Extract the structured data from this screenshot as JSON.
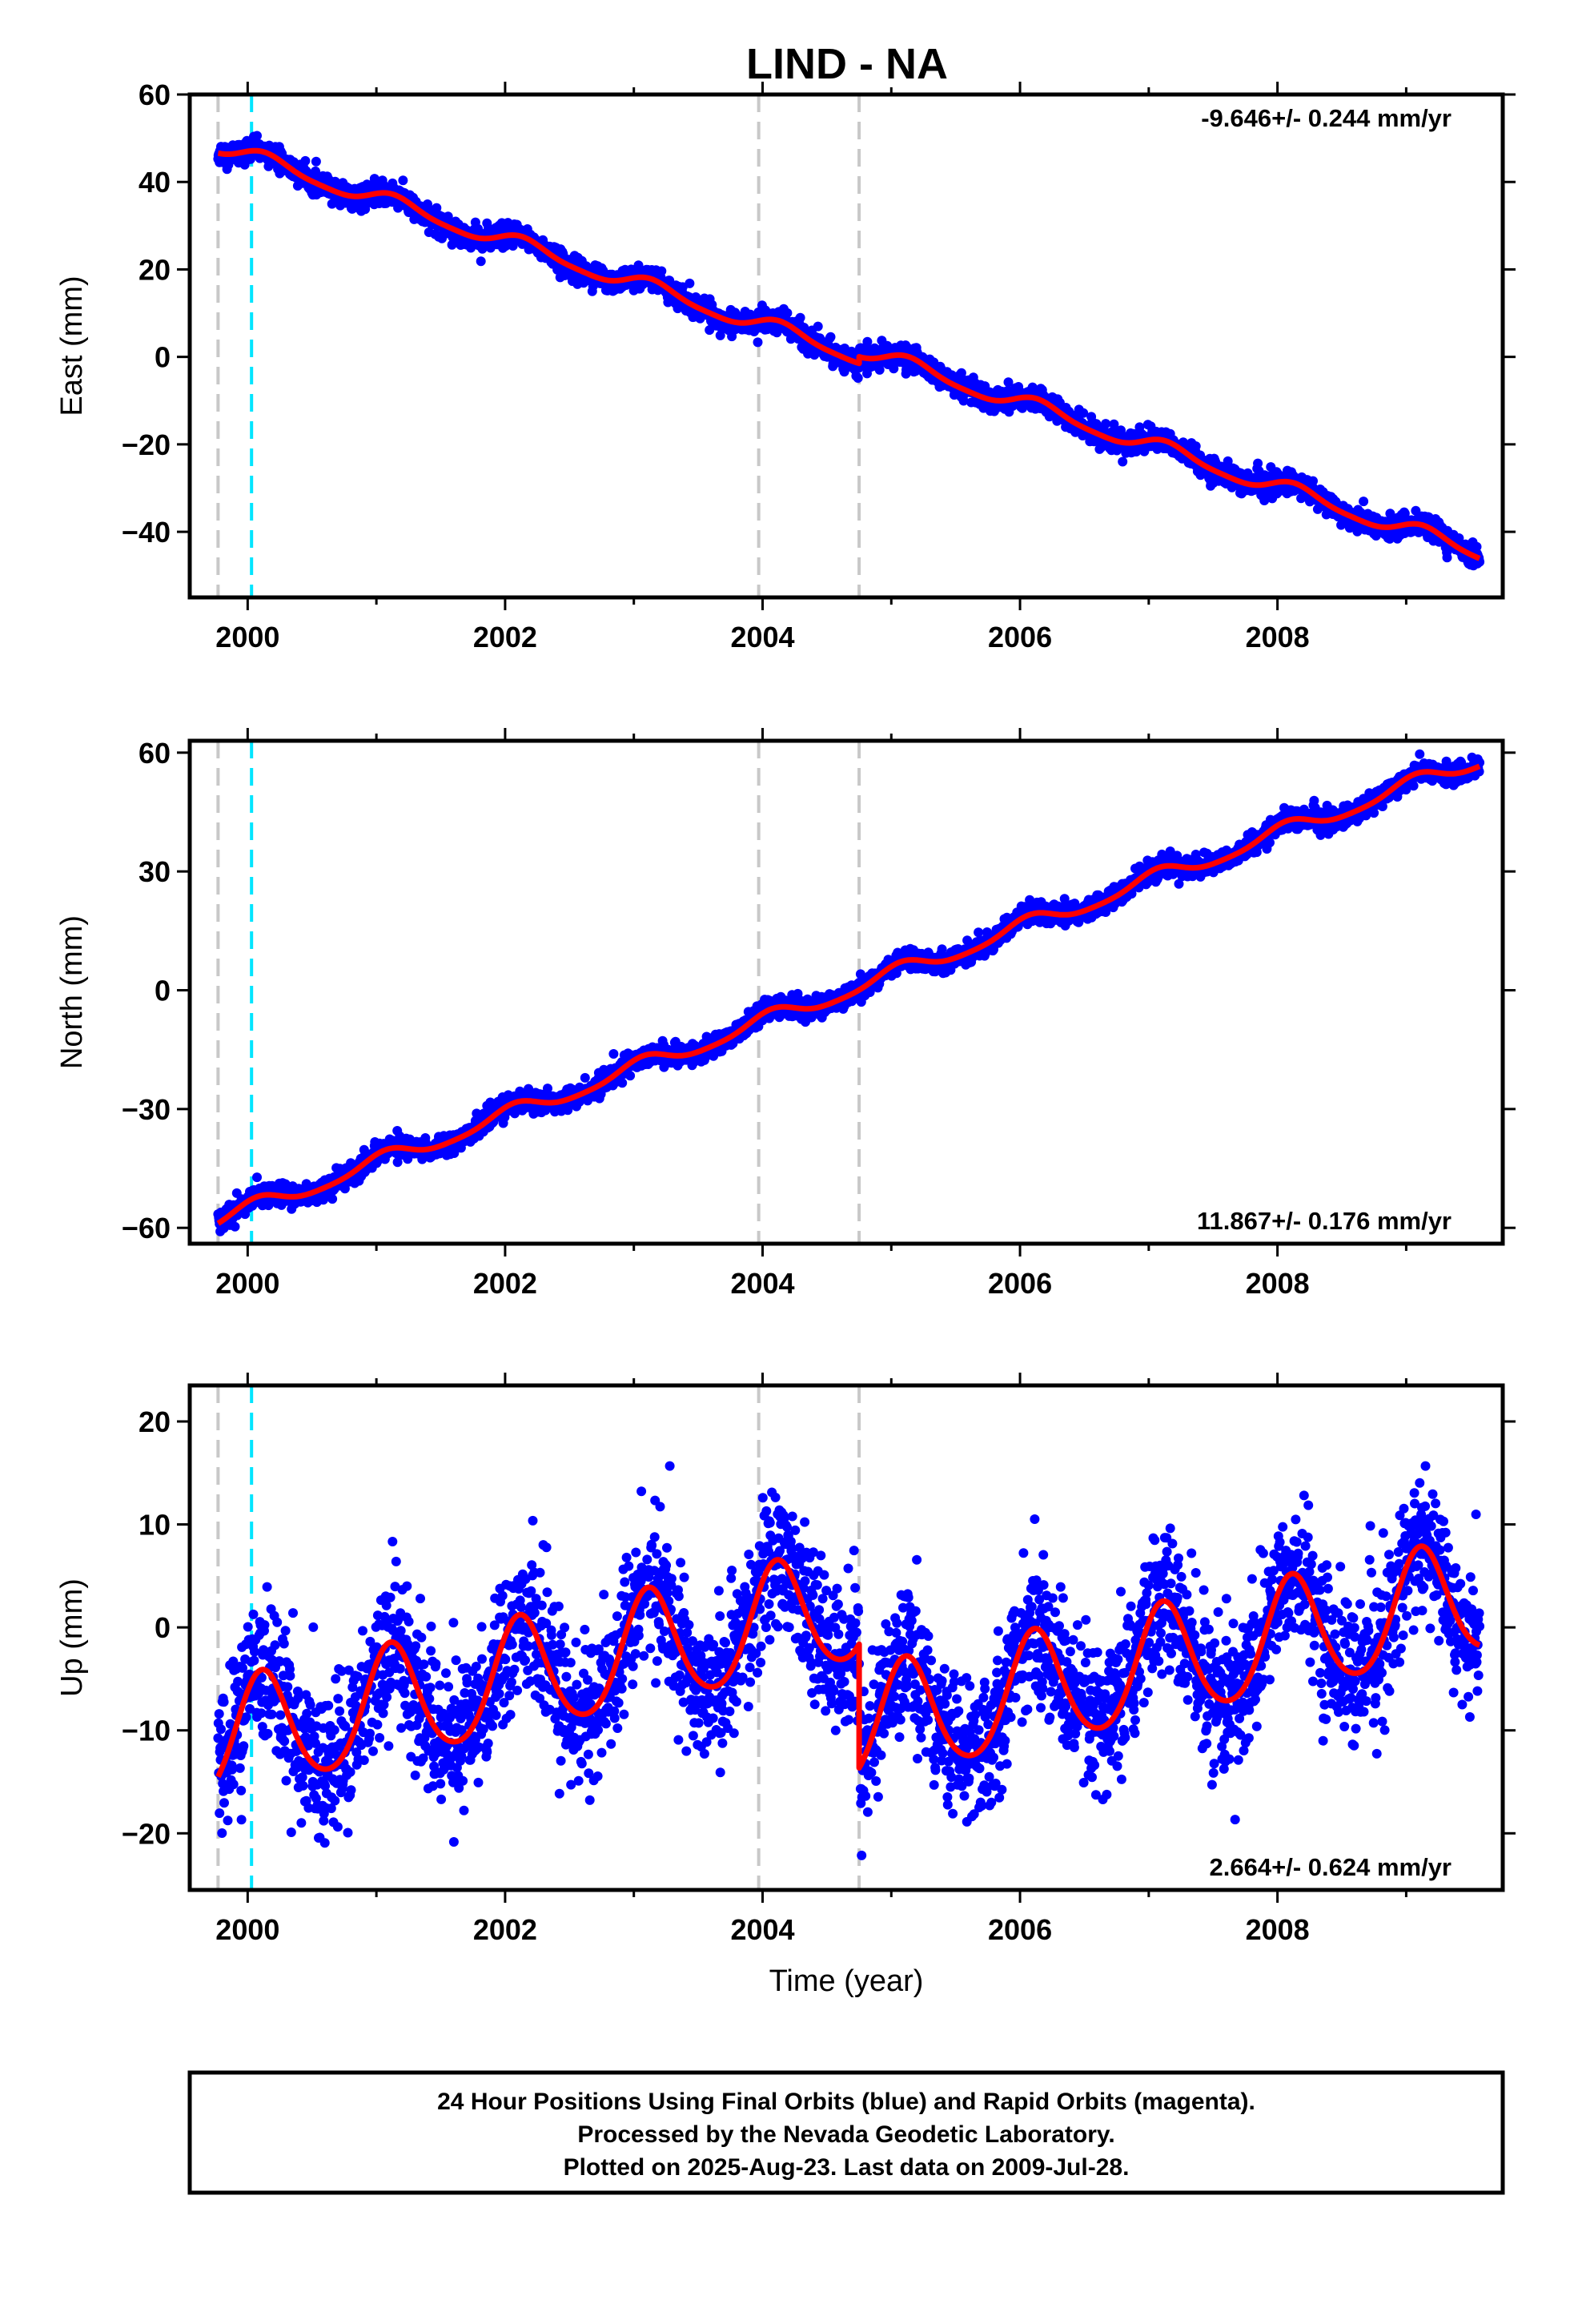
{
  "title": "LIND - NA",
  "x_axis": {
    "label": "Time (year)",
    "range": [
      1999.55,
      2009.75
    ],
    "tick_labels": [
      "2000",
      "2002",
      "2004",
      "2006",
      "2008"
    ],
    "major_ticks": [
      2000,
      2002,
      2004,
      2006,
      2008
    ],
    "minor_ticks": [
      2001,
      2003,
      2005,
      2007,
      2009
    ]
  },
  "event_lines": {
    "gray": [
      1999.77,
      2003.97,
      2004.75
    ],
    "cyan": [
      2000.03
    ]
  },
  "caption": {
    "lines": [
      "24 Hour Positions Using Final Orbits (blue) and Rapid Orbits (magenta).",
      "Processed by the Nevada Geodetic Laboratory.",
      "Plotted on 2025-Aug-23. Last data on 2009-Jul-28."
    ]
  },
  "colors": {
    "final_orbits": "#0000ff",
    "fit_curve": "#ff0000",
    "gray_events": "#c8c8c8",
    "cyan_events": "#00e5ff",
    "frame": "#000000"
  },
  "chart_data": [
    {
      "type": "scatter",
      "component": "east",
      "ylabel": "East (mm)",
      "ylim": [
        -55,
        60
      ],
      "y_ticks": [
        -40,
        -20,
        0,
        20,
        40,
        60
      ],
      "y_tick_labels": [
        "−40",
        "−20",
        "0",
        "20",
        "40",
        "60"
      ],
      "rate_label": "-9.646+/- 0.244 mm/yr",
      "rate_position": "top-right",
      "fit": {
        "rate": -9.646,
        "offset": 2.5,
        "ref_year": 2004.5,
        "annual_amp": 1.8,
        "annual_phase": 0.6,
        "semiannual_amp": 0.4,
        "semiannual_phase": 0.2,
        "steps": [
          {
            "year": 2004.75,
            "size": 1.5
          }
        ]
      },
      "scatter_sigma": 1.3,
      "points_count": 3500,
      "time_range": [
        1999.77,
        2009.57
      ]
    },
    {
      "type": "scatter",
      "component": "north",
      "ylabel": "North (mm)",
      "ylim": [
        -64,
        63
      ],
      "y_ticks": [
        -60,
        -30,
        0,
        30,
        60
      ],
      "y_tick_labels": [
        "−60",
        "−30",
        "0",
        "30",
        "60"
      ],
      "rate_label": "11.867+/- 0.176 mm/yr",
      "rate_position": "bottom-right",
      "fit": {
        "rate": 11.867,
        "offset": -2.0,
        "ref_year": 2004.5,
        "annual_amp": 2.0,
        "annual_phase": 1.2,
        "semiannual_amp": 0.4,
        "semiannual_phase": 0.5,
        "steps": []
      },
      "scatter_sigma": 1.3,
      "points_count": 3500,
      "time_range": [
        1999.77,
        2009.57
      ]
    },
    {
      "type": "scatter",
      "component": "up",
      "ylabel": "Up (mm)",
      "ylim": [
        -25.5,
        23.5
      ],
      "y_ticks": [
        -20,
        -10,
        0,
        10,
        20
      ],
      "y_tick_labels": [
        "−20",
        "−10",
        "0",
        "10",
        "20"
      ],
      "rate_label": "2.664+/- 0.624 mm/yr",
      "rate_position": "bottom-right",
      "fit": {
        "rate": 2.664,
        "offset": 1.5,
        "ref_year": 2004.5,
        "annual_amp": 5.5,
        "annual_phase": 0.85,
        "semiannual_amp": 0.6,
        "semiannual_phase": 0.3,
        "steps": [
          {
            "year": 2004.75,
            "size": -12.0
          }
        ]
      },
      "scatter_sigma": 3.5,
      "points_count": 3500,
      "time_range": [
        1999.77,
        2009.57
      ]
    }
  ]
}
